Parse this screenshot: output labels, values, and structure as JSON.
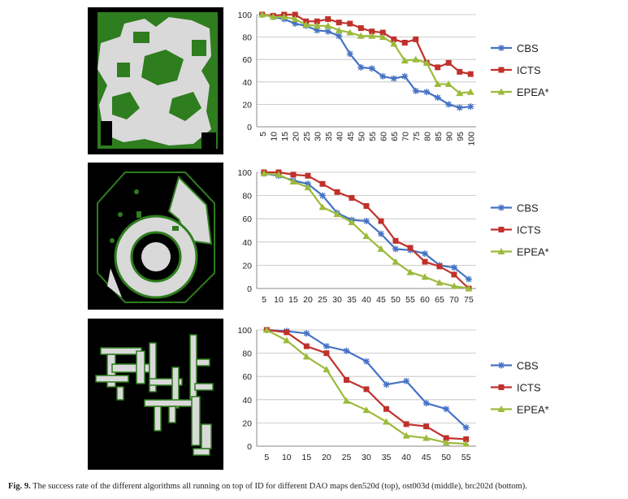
{
  "figure": {
    "caption_label": "Fig. 9.",
    "caption_text": " The success rate of the different algorithms all running on top of ID for different DAO maps den520d (top), ost003d (middle), brc202d (bottom)."
  },
  "colors": {
    "CBS": "#4472c4",
    "ICTS": "#c0312b",
    "EPEA*": "#9bbb3b",
    "map_floor": "#d9d9d9",
    "map_wall": "#2e7d1e",
    "map_bg": "#000000"
  },
  "chart_data": [
    {
      "type": "line",
      "x": [
        5,
        10,
        15,
        20,
        25,
        30,
        35,
        40,
        45,
        50,
        55,
        60,
        65,
        70,
        75,
        80,
        85,
        90,
        95,
        100
      ],
      "ylim": [
        0,
        100
      ],
      "yticks": [
        0,
        20,
        40,
        60,
        80,
        100
      ],
      "xtick_rotated": true,
      "series": [
        {
          "name": "CBS",
          "values": [
            100,
            98,
            96,
            92,
            90,
            86,
            85,
            81,
            65,
            53,
            52,
            45,
            43,
            45,
            32,
            31,
            26,
            20,
            17,
            18
          ]
        },
        {
          "name": "ICTS",
          "values": [
            100,
            99,
            100,
            100,
            94,
            94,
            96,
            93,
            92,
            88,
            85,
            84,
            78,
            75,
            78,
            57,
            53,
            57,
            49,
            47
          ]
        },
        {
          "name": "EPEA*",
          "values": [
            100,
            98,
            98,
            96,
            91,
            90,
            90,
            86,
            84,
            81,
            81,
            80,
            74,
            59,
            60,
            57,
            38,
            38,
            30,
            31
          ]
        }
      ],
      "legend": "right"
    },
    {
      "type": "line",
      "x": [
        5,
        10,
        15,
        20,
        25,
        30,
        35,
        40,
        45,
        50,
        55,
        60,
        65,
        70,
        75
      ],
      "ylim": [
        0,
        100
      ],
      "yticks": [
        0,
        20,
        40,
        60,
        80,
        100
      ],
      "series": [
        {
          "name": "CBS",
          "values": [
            99,
            97,
            93,
            90,
            80,
            65,
            59,
            58,
            47,
            34,
            33,
            30,
            20,
            18,
            8
          ]
        },
        {
          "name": "ICTS",
          "values": [
            100,
            100,
            98,
            97,
            90,
            83,
            78,
            71,
            58,
            41,
            35,
            23,
            19,
            12,
            0
          ]
        },
        {
          "name": "EPEA*",
          "values": [
            99,
            98,
            92,
            87,
            70,
            64,
            57,
            45,
            34,
            23,
            14,
            10,
            5,
            2,
            0
          ]
        }
      ],
      "legend": "right"
    },
    {
      "type": "line",
      "x": [
        5,
        10,
        15,
        20,
        25,
        30,
        35,
        40,
        45,
        50,
        55
      ],
      "ylim": [
        0,
        100
      ],
      "yticks": [
        0,
        20,
        40,
        60,
        80,
        100
      ],
      "series": [
        {
          "name": "CBS",
          "values": [
            100,
            99,
            97,
            86,
            82,
            73,
            53,
            56,
            37,
            32,
            16
          ]
        },
        {
          "name": "ICTS",
          "values": [
            100,
            98,
            86,
            80,
            57,
            49,
            32,
            19,
            17,
            7,
            6
          ]
        },
        {
          "name": "EPEA*",
          "values": [
            100,
            91,
            77,
            66,
            39,
            31,
            21,
            9,
            7,
            3,
            2
          ]
        }
      ],
      "legend": "right"
    }
  ]
}
